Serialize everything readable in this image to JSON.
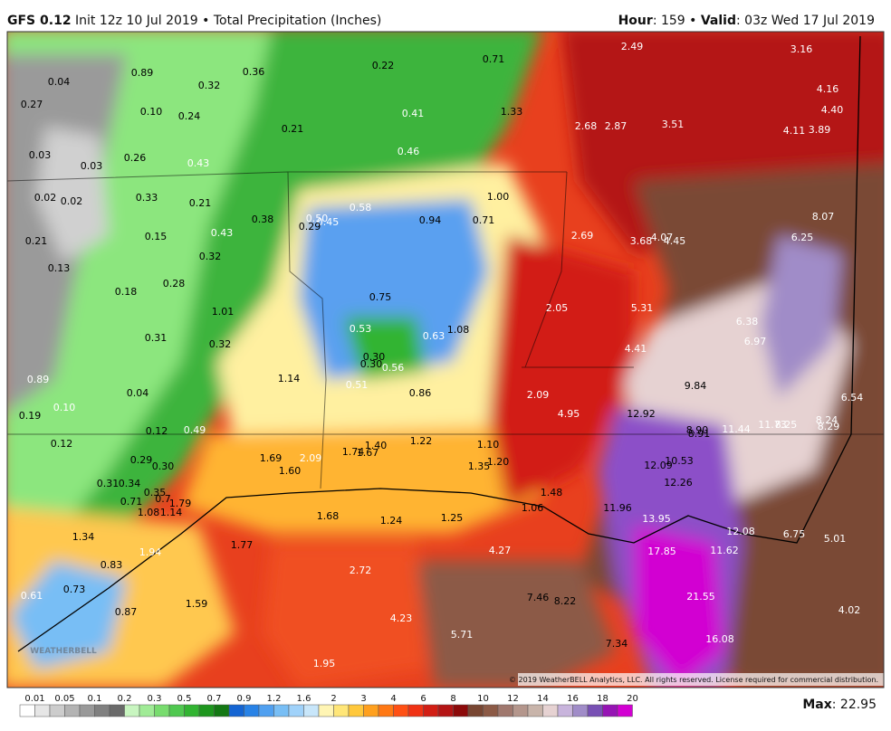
{
  "header": {
    "model": "GFS 0.12",
    "description": "Init 12z 10 Jul 2019 • Total Precipitation (Inches)",
    "hour_label": "Hour",
    "hour_value": ": 159 • ",
    "valid_label": "Valid",
    "valid_value": ": 03z Wed 17 Jul 2019"
  },
  "map": {
    "labels": [
      "0.89",
      "0.04",
      "0.36",
      "0.22",
      "0.71",
      "2.49",
      "3.16",
      "0.27",
      "0.32",
      "0.10",
      "0.24",
      "0.41",
      "1.33",
      "0.21",
      "2.68",
      "2.87",
      "3.51",
      "4.16",
      "4.40",
      "4.11",
      "3.89",
      "0.03",
      "0.03",
      "0.26",
      "0.43",
      "0.46",
      "0.02",
      "0.02",
      "0.33",
      "0.21",
      "1.00",
      "0.58",
      "0.38",
      "0.50",
      "0.45",
      "0.29",
      "0.94",
      "0.71",
      "8.07",
      "0.21",
      "0.15",
      "0.43",
      "2.69",
      "3.68",
      "4.07",
      "4.45",
      "6.25",
      "0.13",
      "0.32",
      "0.18",
      "0.28",
      "0.75",
      "1.01",
      "2.05",
      "5.31",
      "0.53",
      "0.63",
      "1.08",
      "6.38",
      "6.97",
      "0.31",
      "0.32",
      "0.30",
      "0.30",
      "0.56",
      "4.41",
      "0.89",
      "1.14",
      "0.51",
      "0.86",
      "9.84",
      "6.54",
      "0.04",
      "2.09",
      "4.95",
      "12.92",
      "0.19",
      "0.10",
      "0.12",
      "0.49",
      "8.90",
      "8.91",
      "11.44",
      "11.73",
      "8.25",
      "8.24",
      "8.29",
      "0.12",
      "1.22",
      "1.40",
      "1.10",
      "1.69",
      "2.09",
      "1.74",
      "1.67",
      "0.29",
      "0.30",
      "1.20",
      "12.09",
      "10.53",
      "1.60",
      "1.35",
      "0.31",
      "0.34",
      "0.35",
      "12.26",
      "0.71",
      "0.7",
      "1.79",
      "1.48",
      "1.08",
      "1.14",
      "1.06",
      "11.96",
      "1.68",
      "1.24",
      "1.25",
      "13.95",
      "1.34",
      "1.77",
      "4.27",
      "17.85",
      "11.62",
      "12.08",
      "6.75",
      "5.01",
      "1.94",
      "0.83",
      "2.72",
      "0.61",
      "0.73",
      "7.46",
      "8.22",
      "21.55",
      "1.59",
      "0.87",
      "4.23",
      "4.02",
      "5.71",
      "16.08",
      "7.34",
      "1.95"
    ],
    "logo": "WEATHERBELL",
    "copyright": "© 2019 WeatherBELL Analytics, LLC. All rights reserved. License required for commercial distribution."
  },
  "colorbar": {
    "labels": [
      "0.01",
      "0.05",
      "0.1",
      "0.2",
      "0.3",
      "0.5",
      "0.7",
      "0.9",
      "1.2",
      "1.6",
      "2",
      "3",
      "4",
      "6",
      "8",
      "10",
      "12",
      "14",
      "16",
      "18",
      "20"
    ],
    "colors": [
      "#ffffff",
      "#e6e6e6",
      "#cccccc",
      "#b3b3b3",
      "#999999",
      "#808080",
      "#6a6a6a",
      "#c8f5c0",
      "#a0eb96",
      "#78dc6e",
      "#50c850",
      "#32b432",
      "#1e961e",
      "#147814",
      "#1464d2",
      "#2882e6",
      "#50a0f0",
      "#78bef5",
      "#a0d2fa",
      "#c8e6fa",
      "#fff5b4",
      "#ffe678",
      "#ffc83c",
      "#ffa01e",
      "#ff7814",
      "#ff5014",
      "#f03214",
      "#d21e14",
      "#b41414",
      "#8c0a0a",
      "#784632",
      "#8c5a46",
      "#a0786e",
      "#b4968c",
      "#c8b4aa",
      "#e6d2d2",
      "#c8b4dc",
      "#a08cc8",
      "#7850b4",
      "#9614b4",
      "#d200d2"
    ]
  },
  "footer": {
    "max_label": "Max",
    "max_value": ": 22.95"
  }
}
